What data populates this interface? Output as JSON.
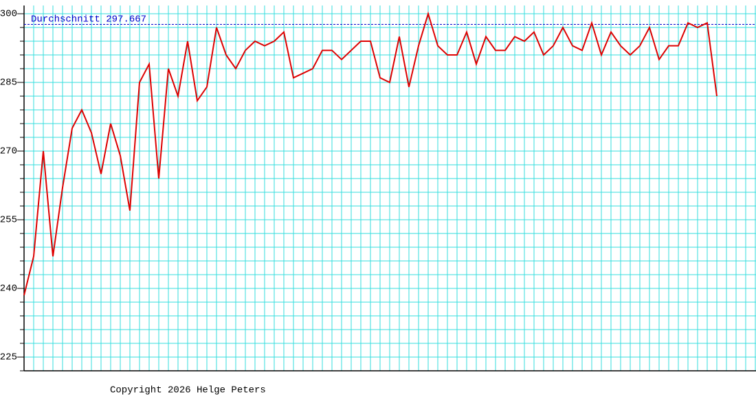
{
  "chart_data": {
    "type": "line",
    "values": [
      238.5,
      247,
      270,
      247,
      262,
      275,
      279,
      274,
      265,
      276,
      269,
      257,
      285,
      289,
      264,
      288,
      282,
      294,
      281,
      284,
      297,
      291,
      288,
      292,
      294,
      293,
      294,
      296,
      286,
      287,
      288,
      292,
      292,
      290,
      292,
      294,
      294,
      286,
      285,
      295,
      284,
      293,
      300,
      293,
      291,
      291,
      296,
      289,
      295,
      292,
      292,
      295,
      294,
      296,
      291,
      293,
      297,
      293,
      292,
      298,
      291,
      296,
      293,
      291,
      293,
      297,
      290,
      293,
      293,
      298,
      297,
      298,
      282
    ],
    "color": "#dd0000",
    "ylim": [
      222,
      301.8
    ],
    "yticks": [
      225,
      240,
      255,
      270,
      285,
      300
    ],
    "grid_yticks": [
      222,
      225,
      228,
      231,
      234,
      237,
      240,
      243,
      246,
      249,
      252,
      255,
      258,
      261,
      264,
      267,
      270,
      273,
      276,
      279,
      282,
      285,
      288,
      291,
      294,
      297,
      300
    ],
    "grid": true,
    "grid_color": "#33dddd",
    "average": {
      "label": "Durchschnitt",
      "value": 297.667,
      "color": "#0000cc"
    },
    "footer": "Copyright 2026 Helge Peters"
  }
}
